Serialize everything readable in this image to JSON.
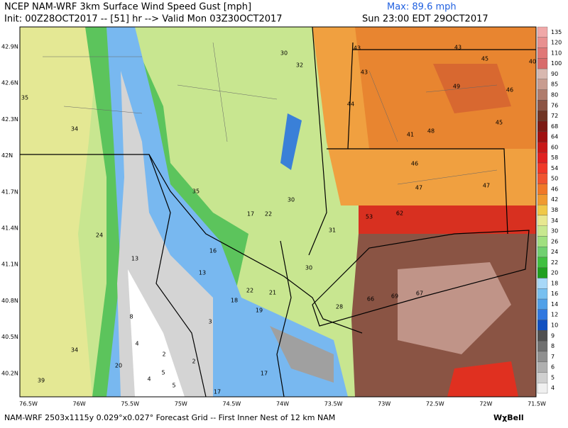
{
  "header": {
    "title": "NCEP NAM-WRF 3km Surface Wind Speed Gust [mph]",
    "max": "Max: 89.6 mph",
    "init": "Init: 00Z28OCT2017 -- [51] hr --> Valid Mon 03Z30OCT2017",
    "local_time": "Sun 23:00 EDT 29OCT2017"
  },
  "latitude_labels": [
    "42.9N",
    "42.6N",
    "42.3N",
    "42N",
    "41.7N",
    "41.4N",
    "41.1N",
    "40.8N",
    "40.5N",
    "40.2N"
  ],
  "longitude_labels": [
    "76.5W",
    "76W",
    "75.5W",
    "75W",
    "74.5W",
    "74W",
    "73.5W",
    "73W",
    "72.5W",
    "72W",
    "71.5W"
  ],
  "colorbar": [
    {
      "label": "135",
      "color": "#f0a8a8"
    },
    {
      "label": "120",
      "color": "#e89090"
    },
    {
      "label": "110",
      "color": "#e07878"
    },
    {
      "label": "100",
      "color": "#d86c6c"
    },
    {
      "label": "90",
      "color": "#d8b8b0"
    },
    {
      "label": "85",
      "color": "#c89c90"
    },
    {
      "label": "80",
      "color": "#b07c6c"
    },
    {
      "label": "76",
      "color": "#8c5444"
    },
    {
      "label": "72",
      "color": "#703424"
    },
    {
      "label": "68",
      "color": "#7c1a14"
    },
    {
      "label": "64",
      "color": "#a01010"
    },
    {
      "label": "60",
      "color": "#c81818"
    },
    {
      "label": "58",
      "color": "#e02020"
    },
    {
      "label": "54",
      "color": "#f03828"
    },
    {
      "label": "50",
      "color": "#f05430"
    },
    {
      "label": "46",
      "color": "#f07828"
    },
    {
      "label": "42",
      "color": "#f09a30"
    },
    {
      "label": "38",
      "color": "#f0c848"
    },
    {
      "label": "34",
      "color": "#e8e890"
    },
    {
      "label": "30",
      "color": "#c8e890"
    },
    {
      "label": "26",
      "color": "#a0e080"
    },
    {
      "label": "24",
      "color": "#70d070"
    },
    {
      "label": "22",
      "color": "#40c040"
    },
    {
      "label": "20",
      "color": "#20a020"
    },
    {
      "label": "18",
      "color": "#a8d8f8"
    },
    {
      "label": "16",
      "color": "#78c0f0"
    },
    {
      "label": "14",
      "color": "#50a0e8"
    },
    {
      "label": "12",
      "color": "#3078e0"
    },
    {
      "label": "10",
      "color": "#1050c0"
    },
    {
      "label": "9",
      "color": "#505050"
    },
    {
      "label": "8",
      "color": "#707070"
    },
    {
      "label": "7",
      "color": "#909090"
    },
    {
      "label": "6",
      "color": "#b0b0b0"
    },
    {
      "label": "5",
      "color": "#d0d0d0"
    },
    {
      "label": "4",
      "color": "#f0f0f0"
    }
  ],
  "map_values": [
    30,
    32,
    43,
    43,
    45,
    40,
    43,
    35,
    49,
    46,
    44,
    34,
    41,
    48,
    45,
    46,
    47,
    47,
    35,
    30,
    17,
    22,
    53,
    62,
    24,
    31,
    16,
    13,
    30,
    13,
    22,
    21,
    18,
    19,
    66,
    69,
    67,
    28,
    8,
    3,
    4,
    2,
    2,
    34,
    20,
    5,
    4,
    5,
    17,
    39,
    17
  ],
  "footer": {
    "grid": "NAM-WRF 2503x1115y 0.029°x0.027° Forecast Grid -- First Inner Nest of 12 km NAM",
    "logo": "WχBell"
  }
}
